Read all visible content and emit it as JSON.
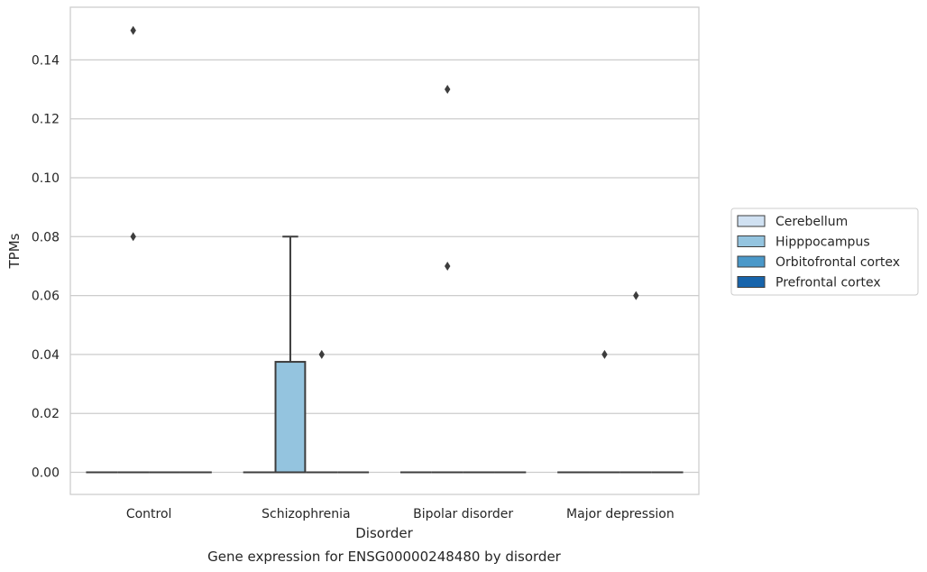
{
  "chart_data": {
    "type": "box",
    "caption": "Gene expression for ENSG00000248480 by disorder",
    "xlabel": "Disorder",
    "ylabel": "TPMs",
    "ylim": [
      -0.0075,
      0.1575
    ],
    "yticks": [
      0.0,
      0.02,
      0.04,
      0.06,
      0.08,
      0.1,
      0.12,
      0.14
    ],
    "ytick_labels": [
      "0.00",
      "0.02",
      "0.04",
      "0.06",
      "0.08",
      "0.10",
      "0.12",
      "0.14"
    ],
    "grid": true,
    "legend_position": "right, outside plot",
    "categories": [
      "Control",
      "Schizophrenia",
      "Bipolar disorder",
      "Major depression"
    ],
    "series": [
      {
        "name": "Cerebellum",
        "color": "#d0e1f2",
        "boxes": [
          {
            "q1": 0,
            "median": 0,
            "q3": 0,
            "whisker_low": 0,
            "whisker_high": 0,
            "outliers": []
          },
          {
            "q1": 0,
            "median": 0,
            "q3": 0,
            "whisker_low": 0,
            "whisker_high": 0,
            "outliers": []
          },
          {
            "q1": 0,
            "median": 0,
            "q3": 0,
            "whisker_low": 0,
            "whisker_high": 0,
            "outliers": []
          },
          {
            "q1": 0,
            "median": 0,
            "q3": 0,
            "whisker_low": 0,
            "whisker_high": 0,
            "outliers": []
          }
        ]
      },
      {
        "name": "Hipppocampus",
        "color": "#94c4df",
        "boxes": [
          {
            "q1": 0,
            "median": 0,
            "q3": 0,
            "whisker_low": 0,
            "whisker_high": 0,
            "outliers": [
              0.15,
              0.08
            ]
          },
          {
            "q1": 0,
            "median": 0,
            "q3": 0.0375,
            "whisker_low": 0,
            "whisker_high": 0.08,
            "outliers": []
          },
          {
            "q1": 0,
            "median": 0,
            "q3": 0,
            "whisker_low": 0,
            "whisker_high": 0,
            "outliers": [
              0.13,
              0.07
            ]
          },
          {
            "q1": 0,
            "median": 0,
            "q3": 0,
            "whisker_low": 0,
            "whisker_high": 0,
            "outliers": [
              0.04
            ]
          }
        ]
      },
      {
        "name": "Orbitofrontal cortex",
        "color": "#4a98c9",
        "boxes": [
          {
            "q1": 0,
            "median": 0,
            "q3": 0,
            "whisker_low": 0,
            "whisker_high": 0,
            "outliers": []
          },
          {
            "q1": 0,
            "median": 0,
            "q3": 0,
            "whisker_low": 0,
            "whisker_high": 0,
            "outliers": [
              0.04
            ]
          },
          {
            "q1": 0,
            "median": 0,
            "q3": 0,
            "whisker_low": 0,
            "whisker_high": 0,
            "outliers": []
          },
          {
            "q1": 0,
            "median": 0,
            "q3": 0,
            "whisker_low": 0,
            "whisker_high": 0,
            "outliers": [
              0.06
            ]
          }
        ]
      },
      {
        "name": "Prefrontal cortex",
        "color": "#1764ab",
        "boxes": [
          {
            "q1": 0,
            "median": 0,
            "q3": 0,
            "whisker_low": 0,
            "whisker_high": 0,
            "outliers": []
          },
          {
            "q1": 0,
            "median": 0,
            "q3": 0,
            "whisker_low": 0,
            "whisker_high": 0,
            "outliers": []
          },
          {
            "q1": 0,
            "median": 0,
            "q3": 0,
            "whisker_low": 0,
            "whisker_high": 0,
            "outliers": []
          },
          {
            "q1": 0,
            "median": 0,
            "q3": 0,
            "whisker_low": 0,
            "whisker_high": 0,
            "outliers": []
          }
        ]
      }
    ]
  }
}
